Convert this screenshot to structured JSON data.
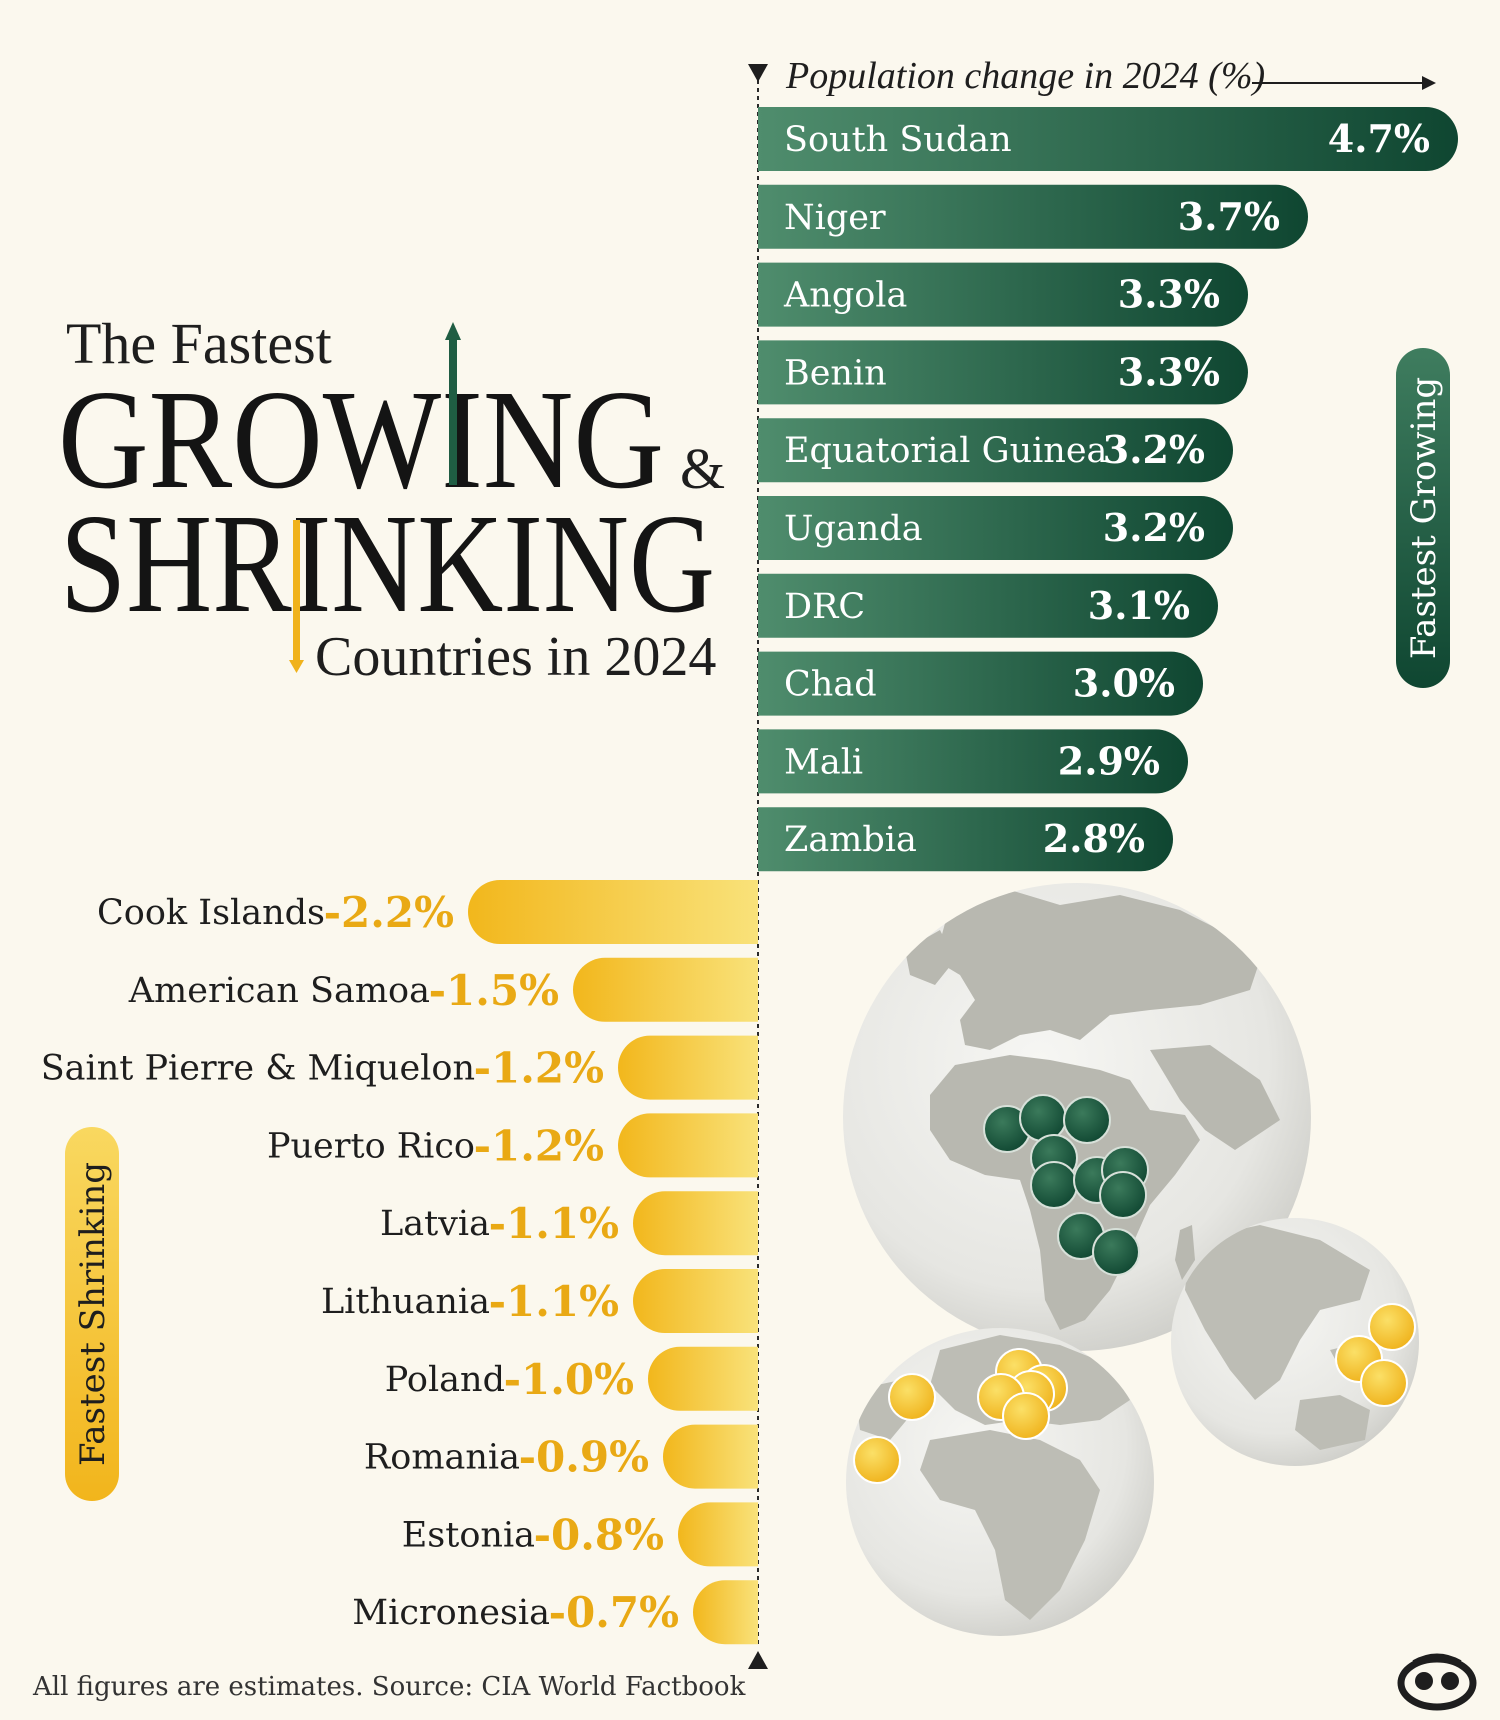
{
  "title": {
    "line1": "The Fastest",
    "line2": "GROWING",
    "amp": "&",
    "line3": "SHRINKING",
    "line4": "Countries in 2024"
  },
  "axis_label": "Population change in 2024 (%)",
  "growing_tag": "Fastest Growing",
  "shrinking_tag": "Fastest Shrinking",
  "source": "All figures are estimates. Source: CIA World Factbook",
  "colors": {
    "background": "#fbf8ee",
    "green_dark": "#0f4a33",
    "green_light": "#4a8a6a",
    "yellow_dark": "#f2b81f",
    "yellow_light": "#f8df70",
    "value_yellow": "#e9a914",
    "globe_land": "#b9b9b1",
    "globe_sea": "#ededea"
  },
  "brand_icon": "visual-capitalist-logo-icon",
  "chart_data": {
    "type": "bar",
    "orientation": "horizontal-diverging",
    "x_label": "Population change in 2024 (%)",
    "series": [
      {
        "name": "Fastest Growing",
        "categories": [
          "South Sudan",
          "Niger",
          "Angola",
          "Benin",
          "Equatorial Guinea",
          "Uganda",
          "DRC",
          "Chad",
          "Mali",
          "Zambia"
        ],
        "values": [
          4.7,
          3.7,
          3.3,
          3.3,
          3.2,
          3.2,
          3.1,
          3.0,
          2.9,
          2.8
        ],
        "labels": [
          "4.7%",
          "3.7%",
          "3.3%",
          "3.3%",
          "3.2%",
          "3.2%",
          "3.1%",
          "3.0%",
          "2.9%",
          "2.8%"
        ]
      },
      {
        "name": "Fastest Shrinking",
        "categories": [
          "Cook Islands",
          "American Samoa",
          "Saint Pierre & Miquelon",
          "Puerto Rico",
          "Latvia",
          "Lithuania",
          "Poland",
          "Romania",
          "Estonia",
          "Micronesia"
        ],
        "values": [
          -2.2,
          -1.5,
          -1.2,
          -1.2,
          -1.1,
          -1.1,
          -1.0,
          -0.9,
          -0.8,
          -0.7
        ],
        "labels": [
          "-2.2%",
          "-1.5%",
          "-1.2%",
          "-1.2%",
          "-1.1%",
          "-1.1%",
          "-1.0%",
          "-0.9%",
          "-0.8%",
          "-0.7%"
        ]
      }
    ]
  }
}
